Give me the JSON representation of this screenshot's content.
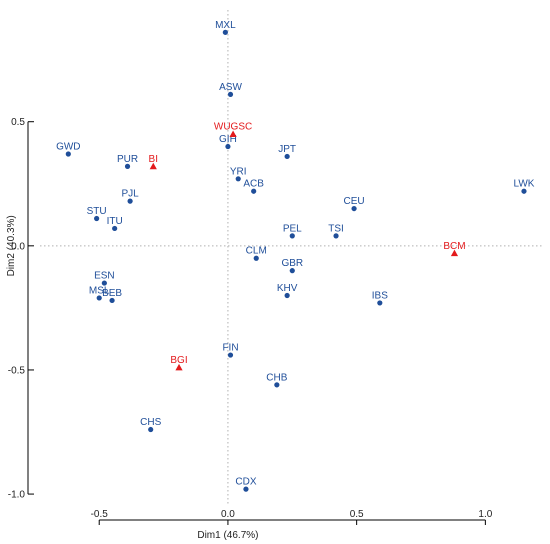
{
  "chart_data": {
    "type": "scatter",
    "title": "",
    "xlabel": "Dim1 (46.7%)",
    "ylabel": "Dim2 (40.3%)",
    "xlim": [
      -0.73,
      1.22
    ],
    "ylim": [
      -1.04,
      0.95
    ],
    "xticks": [
      -0.5,
      0.0,
      0.5,
      1.0
    ],
    "yticks": [
      -1.0,
      -0.5,
      0.0,
      0.5
    ],
    "xtick_labels": [
      "-0.5",
      "0.0",
      "0.5",
      "1.0"
    ],
    "ytick_labels": [
      "-1.0",
      "-0.5",
      "0.0",
      "0.5"
    ],
    "grid": false,
    "reference_lines": {
      "x": 0,
      "y": 0,
      "style": "dotted"
    },
    "colors": {
      "populations": "#1f4e99",
      "sources": "#e31a1c",
      "reference": "#b0b0b0",
      "axis": "#000000"
    },
    "series": [
      {
        "marker": "circle",
        "color": "#1f4e99",
        "points": [
          {
            "label": "MXL",
            "x": -0.01,
            "y": 0.86
          },
          {
            "label": "ASW",
            "x": 0.01,
            "y": 0.61
          },
          {
            "label": "GIH",
            "x": 0.0,
            "y": 0.4
          },
          {
            "label": "GWD",
            "x": -0.62,
            "y": 0.37
          },
          {
            "label": "PUR",
            "x": -0.39,
            "y": 0.32
          },
          {
            "label": "JPT",
            "x": 0.23,
            "y": 0.36
          },
          {
            "label": "YRI",
            "x": 0.04,
            "y": 0.27
          },
          {
            "label": "ACB",
            "x": 0.1,
            "y": 0.22
          },
          {
            "label": "LWK",
            "x": 1.15,
            "y": 0.22
          },
          {
            "label": "PJL",
            "x": -0.38,
            "y": 0.18
          },
          {
            "label": "CEU",
            "x": 0.49,
            "y": 0.15
          },
          {
            "label": "STU",
            "x": -0.51,
            "y": 0.11
          },
          {
            "label": "ITU",
            "x": -0.44,
            "y": 0.07
          },
          {
            "label": "PEL",
            "x": 0.25,
            "y": 0.04
          },
          {
            "label": "TSI",
            "x": 0.42,
            "y": 0.04
          },
          {
            "label": "CLM",
            "x": 0.11,
            "y": -0.05
          },
          {
            "label": "GBR",
            "x": 0.25,
            "y": -0.1
          },
          {
            "label": "ESN",
            "x": -0.48,
            "y": -0.15
          },
          {
            "label": "KHV",
            "x": 0.23,
            "y": -0.2
          },
          {
            "label": "IBS",
            "x": 0.59,
            "y": -0.23
          },
          {
            "label": "MSL",
            "x": -0.5,
            "y": -0.21
          },
          {
            "label": "BEB",
            "x": -0.45,
            "y": -0.22
          },
          {
            "label": "FIN",
            "x": 0.01,
            "y": -0.44
          },
          {
            "label": "CHB",
            "x": 0.19,
            "y": -0.56
          },
          {
            "label": "CHS",
            "x": -0.3,
            "y": -0.74
          },
          {
            "label": "CDX",
            "x": 0.07,
            "y": -0.98
          }
        ]
      },
      {
        "marker": "triangle",
        "color": "#e31a1c",
        "points": [
          {
            "label": "WUGSC",
            "x": 0.02,
            "y": 0.45
          },
          {
            "label": "BI",
            "x": -0.29,
            "y": 0.32
          },
          {
            "label": "BCM",
            "x": 0.88,
            "y": -0.03
          },
          {
            "label": "BGI",
            "x": -0.19,
            "y": -0.49
          }
        ]
      }
    ]
  }
}
